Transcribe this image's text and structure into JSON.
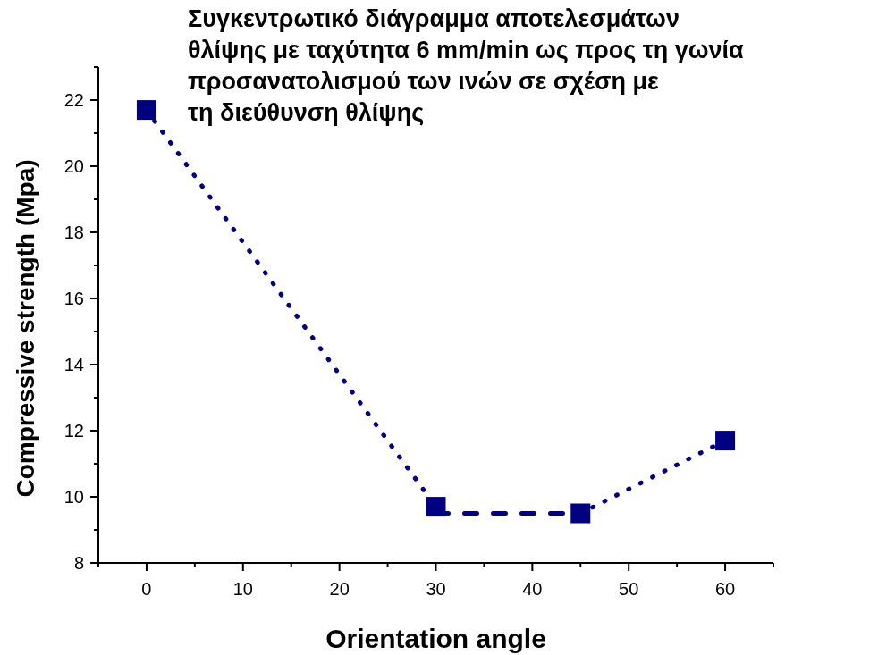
{
  "chart_data": {
    "type": "line",
    "title": "Συγκεντρωτικό διάγραμμα αποτελεσμάτων\nθλίψης με ταχύτητα 6 mm/min ως προς τη γωνία\nπροσανατολισμού των ινών σε σχέση με\nτη διεύθυνση θλίψης",
    "xlabel": "Orientation  angle",
    "ylabel": "Compressive strength (Mpa)",
    "xlim": [
      -5,
      65
    ],
    "ylim": [
      8,
      23
    ],
    "xticks": [
      {
        "value": -5,
        "label": null
      },
      0,
      {
        "value": 5,
        "label": null
      },
      10,
      {
        "value": 15,
        "label": null
      },
      20,
      {
        "value": 25,
        "label": null
      },
      30,
      {
        "value": 35,
        "label": null
      },
      40,
      {
        "value": 45,
        "label": null
      },
      50,
      {
        "value": 55,
        "label": null
      },
      60,
      {
        "value": 65,
        "label": null
      }
    ],
    "yticks": [
      8,
      {
        "value": 9,
        "label": null
      },
      10,
      {
        "value": 11,
        "label": null
      },
      12,
      {
        "value": 13,
        "label": null
      },
      14,
      {
        "value": 15,
        "label": null
      },
      16,
      {
        "value": 17,
        "label": null
      },
      18,
      {
        "value": 19,
        "label": null
      },
      20,
      {
        "value": 21,
        "label": null
      },
      22,
      {
        "value": 23,
        "label": null
      }
    ],
    "grid": false,
    "series": [
      {
        "line_style": "dotted",
        "marker": "none",
        "color": "#000080",
        "x": [
          0,
          30
        ],
        "values": [
          21.7,
          9.7
        ]
      },
      {
        "line_style": "dashed",
        "marker": "none",
        "color": "#000080",
        "x": [
          30,
          45
        ],
        "values": [
          9.5,
          9.5
        ]
      },
      {
        "line_style": "dotted",
        "marker": "none",
        "color": "#000080",
        "x": [
          45,
          60
        ],
        "values": [
          9.5,
          11.7
        ]
      },
      {
        "type": "scatter",
        "marker": "square",
        "color": "#000080",
        "x": [
          0,
          30,
          45,
          60
        ],
        "values": [
          21.7,
          9.7,
          9.5,
          11.7
        ]
      }
    ]
  }
}
